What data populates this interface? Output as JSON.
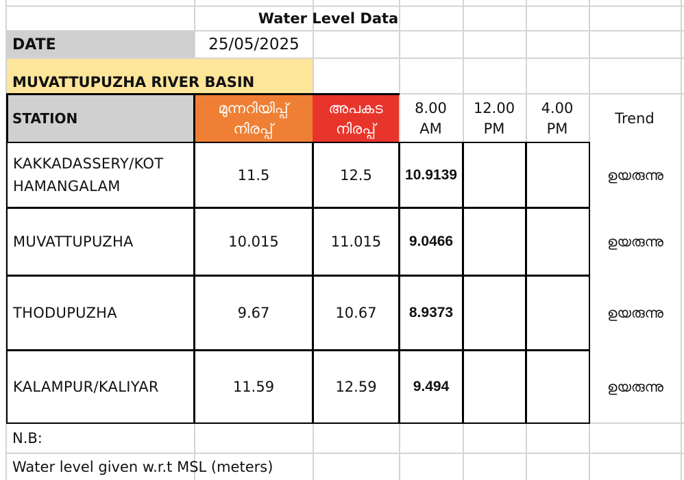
{
  "title": "Water Level Data",
  "date": {
    "label": "DATE",
    "value": "25/05/2025"
  },
  "basin": "MUVATTUPUZHA RIVER BASIN",
  "headers": {
    "station": "STATION",
    "warning_l1": "മുന്നറിയിപ്പ്",
    "warning_l2": "നിരപ്പ്",
    "danger_l1": "അപകട",
    "danger_l2": "നിരപ്പ്",
    "t8_l1": "8.00",
    "t8_l2": "AM",
    "t12_l1": "12.00",
    "t12_l2": "PM",
    "t4_l1": "4.00",
    "t4_l2": "PM",
    "trend": "Trend"
  },
  "colors": {
    "warning": "#ef7f34",
    "danger": "#e8352b",
    "basin": "#fde59a",
    "header_grey": "#d0d0d0"
  },
  "rows": [
    {
      "station_l1": "KAKKADASSERY/KOT",
      "station_l2": "HAMANGALAM",
      "warning": "11.5",
      "danger": "12.5",
      "am8": "10.9139",
      "pm12": "",
      "pm4": "",
      "trend": "ഉയരുന്നു"
    },
    {
      "station_l1": "MUVATTUPUZHA",
      "station_l2": "",
      "warning": "10.015",
      "danger": "11.015",
      "am8": "9.0466",
      "pm12": "",
      "pm4": "",
      "trend": "ഉയരുന്നു"
    },
    {
      "station_l1": "THODUPUZHA",
      "station_l2": "",
      "warning": "9.67",
      "danger": "10.67",
      "am8": "8.9373",
      "pm12": "",
      "pm4": "",
      "trend": "ഉയരുന്നു"
    },
    {
      "station_l1": "KALAMPUR/KALIYAR",
      "station_l2": "",
      "warning": "11.59",
      "danger": "12.59",
      "am8": "9.494",
      "pm12": "",
      "pm4": "",
      "trend": "ഉയരുന്നു"
    }
  ],
  "notes": {
    "nb": "N.B:",
    "msl": "Water level given w.r.t MSL (meters)"
  }
}
